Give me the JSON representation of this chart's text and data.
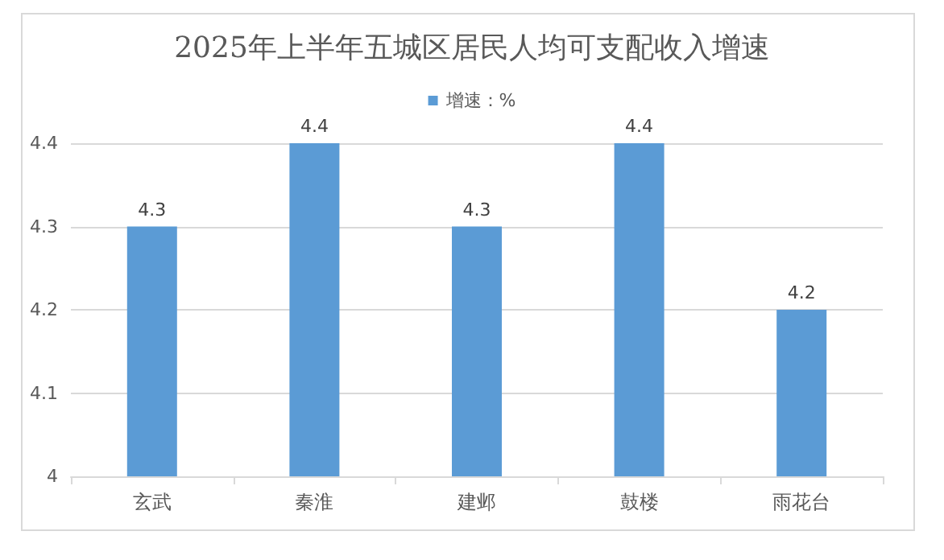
{
  "chart_data": {
    "type": "bar",
    "title": "2025年上半年五城区居民人均可支配收入增速",
    "categories": [
      "玄武",
      "秦淮",
      "建邺",
      "鼓楼",
      "雨花台"
    ],
    "series": [
      {
        "name": "增速：%",
        "color": "#5b9bd5",
        "values": [
          4.3,
          4.4,
          4.3,
          4.4,
          4.2
        ]
      }
    ],
    "ylim": [
      4,
      4.4
    ],
    "yticks": [
      4,
      4.1,
      4.2,
      4.3,
      4.4
    ],
    "grid": "y",
    "legend": "top",
    "data_labels": true
  }
}
